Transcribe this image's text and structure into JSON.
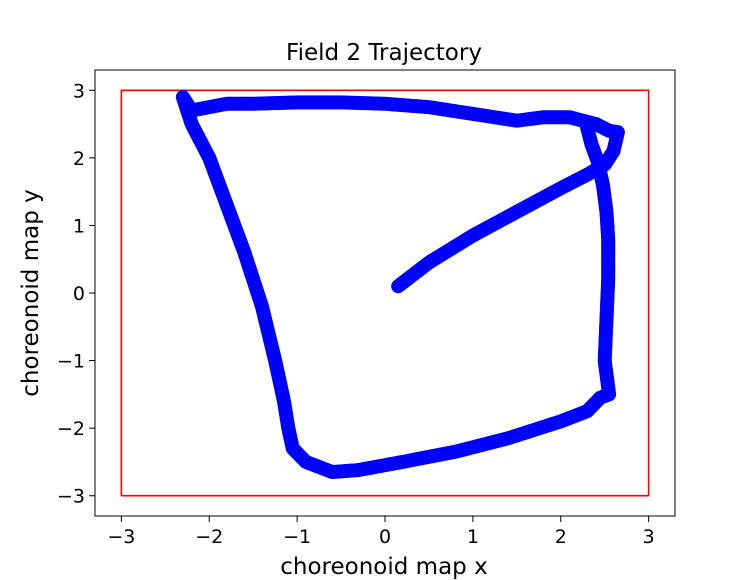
{
  "chart_data": {
    "type": "scatter",
    "title": "Field 2 Trajectory",
    "xlabel": "choreonoid map x",
    "ylabel": "choreonoid map y",
    "xlim": [
      -3.3,
      3.3
    ],
    "ylim": [
      -3.3,
      3.3
    ],
    "xticks": [
      -3,
      -2,
      -1,
      0,
      1,
      2,
      3
    ],
    "yticks": [
      -3,
      -2,
      -1,
      0,
      1,
      2,
      3
    ],
    "xtick_labels": [
      "−3",
      "−2",
      "−1",
      "0",
      "1",
      "2",
      "3"
    ],
    "ytick_labels": [
      "−3",
      "−2",
      "−1",
      "0",
      "1",
      "2",
      "3"
    ],
    "grid": false,
    "marker_color": "#0000ff",
    "boundary_color": "#ff0000",
    "boundary": {
      "x": [
        -3,
        3,
        3,
        -3,
        -3
      ],
      "y": [
        -3,
        -3,
        3,
        3,
        -3
      ]
    },
    "series": [
      {
        "x": [
          0.15,
          0.5,
          1.0,
          1.5,
          2.0,
          2.3,
          2.5,
          2.6,
          2.65,
          2.55,
          2.4,
          2.1,
          1.8,
          1.5,
          1.0,
          0.5,
          0.0,
          -0.5,
          -1.0,
          -1.5,
          -1.8,
          -2.0,
          -2.2,
          -2.3,
          -2.2,
          -2.0,
          -1.8,
          -1.6,
          -1.4,
          -1.25,
          -1.15,
          -1.1,
          -1.05,
          -0.9,
          -0.6,
          -0.3,
          0.2,
          0.8,
          1.4,
          2.0,
          2.3,
          2.45,
          2.55,
          2.5,
          2.52,
          2.54,
          2.54,
          2.52,
          2.48,
          2.42,
          2.35,
          2.3
        ],
        "y": [
          0.1,
          0.45,
          0.85,
          1.2,
          1.55,
          1.75,
          1.9,
          2.1,
          2.38,
          2.4,
          2.5,
          2.6,
          2.6,
          2.55,
          2.65,
          2.75,
          2.8,
          2.82,
          2.82,
          2.8,
          2.8,
          2.75,
          2.7,
          2.9,
          2.5,
          2.0,
          1.3,
          0.6,
          -0.2,
          -1.0,
          -1.6,
          -2.0,
          -2.3,
          -2.5,
          -2.65,
          -2.62,
          -2.5,
          -2.35,
          -2.15,
          -1.9,
          -1.75,
          -1.55,
          -1.5,
          -1.0,
          -0.4,
          0.2,
          0.8,
          1.2,
          1.6,
          1.95,
          2.2,
          2.45
        ]
      }
    ]
  }
}
